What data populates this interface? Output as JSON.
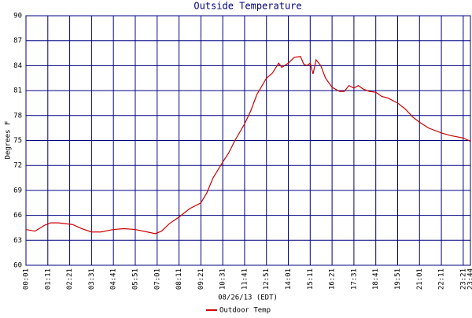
{
  "chart_data": {
    "type": "line",
    "title": "Outside Temperature",
    "x_label": "08/26/13 (EDT)",
    "y_label": "Degrees F",
    "x": [
      1,
      30,
      60,
      80,
      105,
      150,
      180,
      211,
      240,
      281,
      315,
      351,
      390,
      415,
      435,
      460,
      491,
      525,
      561,
      580,
      600,
      631,
      650,
      670,
      701,
      720,
      740,
      771,
      790,
      810,
      820,
      841,
      860,
      880,
      890,
      900,
      911,
      920,
      930,
      945,
      960,
      981,
      1005,
      1020,
      1035,
      1051,
      1065,
      1080,
      1100,
      1121,
      1140,
      1160,
      1191,
      1215,
      1240,
      1261,
      1290,
      1331,
      1360,
      1401,
      1424
    ],
    "series": [
      {
        "name": "Outdoor Temp",
        "color": "#cc0000",
        "values": [
          64.3,
          64.1,
          64.8,
          65.1,
          65.1,
          64.9,
          64.4,
          64.0,
          64.0,
          64.3,
          64.4,
          64.3,
          64.0,
          63.8,
          64.1,
          65.0,
          65.8,
          66.8,
          67.5,
          68.7,
          70.5,
          72.4,
          73.5,
          75.0,
          77.0,
          78.5,
          80.5,
          82.5,
          83.1,
          84.3,
          83.8,
          84.3,
          85.0,
          85.1,
          84.2,
          84.0,
          84.3,
          83.0,
          84.7,
          84.0,
          82.5,
          81.4,
          80.9,
          80.9,
          81.6,
          81.3,
          81.6,
          81.2,
          80.9,
          80.8,
          80.3,
          80.1,
          79.5,
          78.8,
          77.8,
          77.2,
          76.5,
          75.9,
          75.6,
          75.3,
          74.9
        ]
      }
    ],
    "xlim": [
      1,
      1424
    ],
    "xticks": [
      {
        "value": 1,
        "label": "00:01"
      },
      {
        "value": 71,
        "label": "01:11"
      },
      {
        "value": 141,
        "label": "02:21"
      },
      {
        "value": 211,
        "label": "03:31"
      },
      {
        "value": 281,
        "label": "04:41"
      },
      {
        "value": 351,
        "label": "05:51"
      },
      {
        "value": 421,
        "label": "07:01"
      },
      {
        "value": 491,
        "label": "08:11"
      },
      {
        "value": 561,
        "label": "09:21"
      },
      {
        "value": 631,
        "label": "10:31"
      },
      {
        "value": 701,
        "label": "11:41"
      },
      {
        "value": 771,
        "label": "12:51"
      },
      {
        "value": 841,
        "label": "14:01"
      },
      {
        "value": 911,
        "label": "15:11"
      },
      {
        "value": 981,
        "label": "16:21"
      },
      {
        "value": 1051,
        "label": "17:31"
      },
      {
        "value": 1121,
        "label": "18:41"
      },
      {
        "value": 1191,
        "label": "19:51"
      },
      {
        "value": 1261,
        "label": "21:01"
      },
      {
        "value": 1331,
        "label": "22:11"
      },
      {
        "value": 1401,
        "label": "23:21"
      },
      {
        "value": 1424,
        "label": "23:44"
      }
    ],
    "ylim": [
      60,
      90
    ],
    "yticks": [
      60,
      63,
      66,
      69,
      72,
      75,
      78,
      81,
      84,
      87,
      90
    ],
    "grid": true,
    "legend": "bottom"
  }
}
